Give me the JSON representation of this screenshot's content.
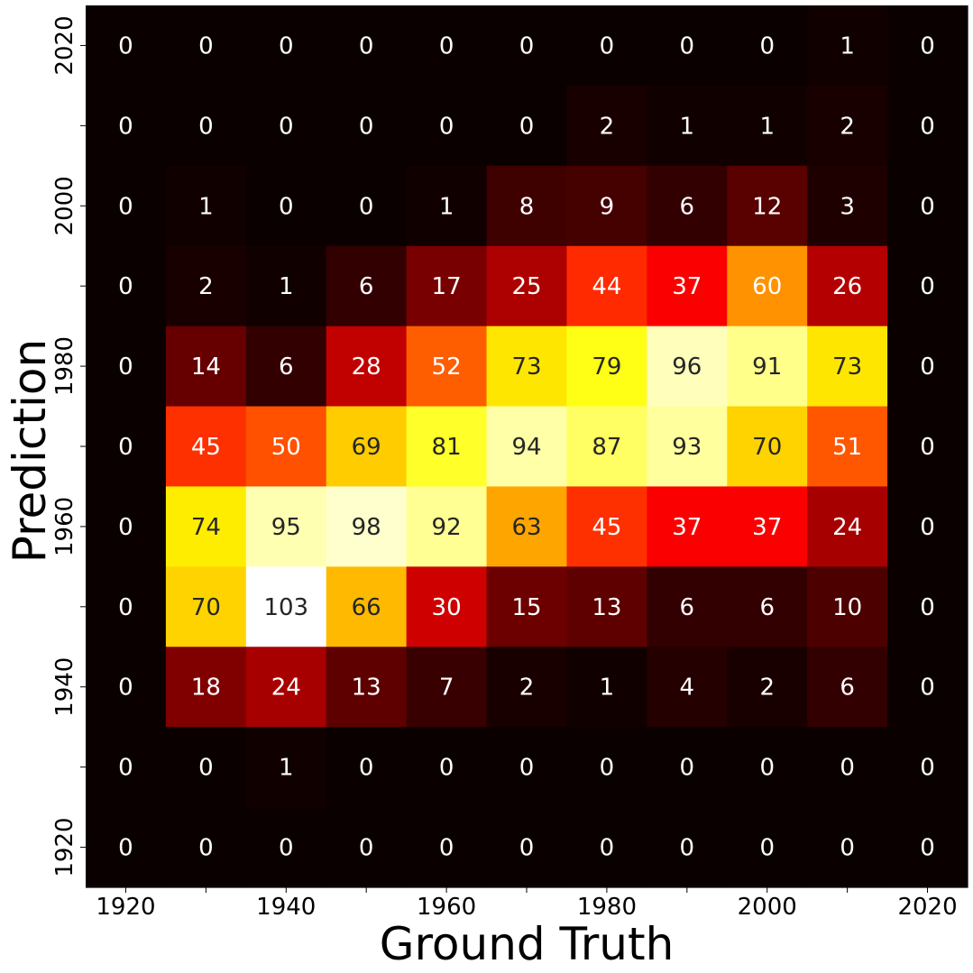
{
  "chart_data": {
    "type": "heatmap",
    "title": "",
    "xlabel": "Ground Truth",
    "ylabel": "Prediction",
    "colormap": "hot",
    "x_categories": [
      1920,
      1930,
      1940,
      1950,
      1960,
      1970,
      1980,
      1990,
      2000,
      2010,
      2020
    ],
    "y_categories": [
      2020,
      2010,
      2000,
      1990,
      1980,
      1970,
      1960,
      1950,
      1940,
      1930,
      1920
    ],
    "x_tick_labels": [
      "1920",
      "1940",
      "1960",
      "1980",
      "2000",
      "2020"
    ],
    "y_tick_labels": [
      "2020",
      "2000",
      "1980",
      "1960",
      "1940",
      "1920"
    ],
    "value_range": [
      0,
      103
    ],
    "values": [
      [
        0,
        0,
        0,
        0,
        0,
        0,
        0,
        0,
        0,
        1,
        0
      ],
      [
        0,
        0,
        0,
        0,
        0,
        0,
        2,
        1,
        1,
        2,
        0
      ],
      [
        0,
        1,
        0,
        0,
        1,
        8,
        9,
        6,
        12,
        3,
        0
      ],
      [
        0,
        2,
        1,
        6,
        17,
        25,
        44,
        37,
        60,
        26,
        0
      ],
      [
        0,
        14,
        6,
        28,
        52,
        73,
        79,
        96,
        91,
        73,
        0
      ],
      [
        0,
        45,
        50,
        69,
        81,
        94,
        87,
        93,
        70,
        51,
        0
      ],
      [
        0,
        74,
        95,
        98,
        92,
        63,
        45,
        37,
        37,
        24,
        0
      ],
      [
        0,
        70,
        103,
        66,
        30,
        15,
        13,
        6,
        6,
        10,
        0
      ],
      [
        0,
        18,
        24,
        13,
        7,
        2,
        1,
        4,
        2,
        6,
        0
      ],
      [
        0,
        0,
        1,
        0,
        0,
        0,
        0,
        0,
        0,
        0,
        0
      ],
      [
        0,
        0,
        0,
        0,
        0,
        0,
        0,
        0,
        0,
        0,
        0
      ]
    ],
    "text_color_light": "#ffffff",
    "text_color_dark": "#262626"
  }
}
